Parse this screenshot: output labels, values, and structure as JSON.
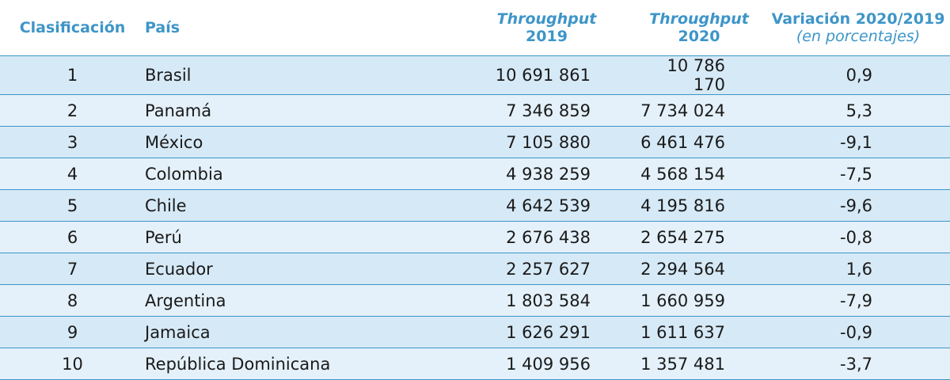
{
  "header": {
    "rank": "Clasificación",
    "country": "País",
    "t2019_line1": "Throughput",
    "t2019_line2": "2019",
    "t2020_line1": "Throughput",
    "t2020_line2": "2020",
    "var_line1": "Variación 2020/2019",
    "var_line2": "(en porcentajes)"
  },
  "rows": [
    {
      "rank": "1",
      "country": "Brasil",
      "t2019": "10 691 861",
      "t2020": "10 786 170",
      "var": "0,9"
    },
    {
      "rank": "2",
      "country": "Panamá",
      "t2019": "7 346 859",
      "t2020": "7 734 024",
      "var": "5,3"
    },
    {
      "rank": "3",
      "country": "México",
      "t2019": "7 105 880",
      "t2020": "6 461 476",
      "var": "-9,1"
    },
    {
      "rank": "4",
      "country": "Colombia",
      "t2019": "4 938 259",
      "t2020": "4 568 154",
      "var": "-7,5"
    },
    {
      "rank": "5",
      "country": "Chile",
      "t2019": "4 642 539",
      "t2020": "4 195 816",
      "var": "-9,6"
    },
    {
      "rank": "6",
      "country": "Perú",
      "t2019": "2 676 438",
      "t2020": "2 654 275",
      "var": "-0,8"
    },
    {
      "rank": "7",
      "country": "Ecuador",
      "t2019": "2 257 627",
      "t2020": "2 294 564",
      "var": "1,6"
    },
    {
      "rank": "8",
      "country": "Argentina",
      "t2019": "1 803 584",
      "t2020": "1 660 959",
      "var": "-7,9"
    },
    {
      "rank": "9",
      "country": "Jamaica",
      "t2019": "1 626 291",
      "t2020": "1 611 637",
      "var": "-0,9"
    },
    {
      "rank": "10",
      "country": "República Dominicana",
      "t2019": "1 409 956",
      "t2020": "1 357 481",
      "var": "-3,7"
    }
  ],
  "colors": {
    "header_text": "#3d95c8",
    "row_bg": "#d6e9f6",
    "row_bg_alt": "#e4f1fa",
    "rule": "#3d95c8"
  }
}
